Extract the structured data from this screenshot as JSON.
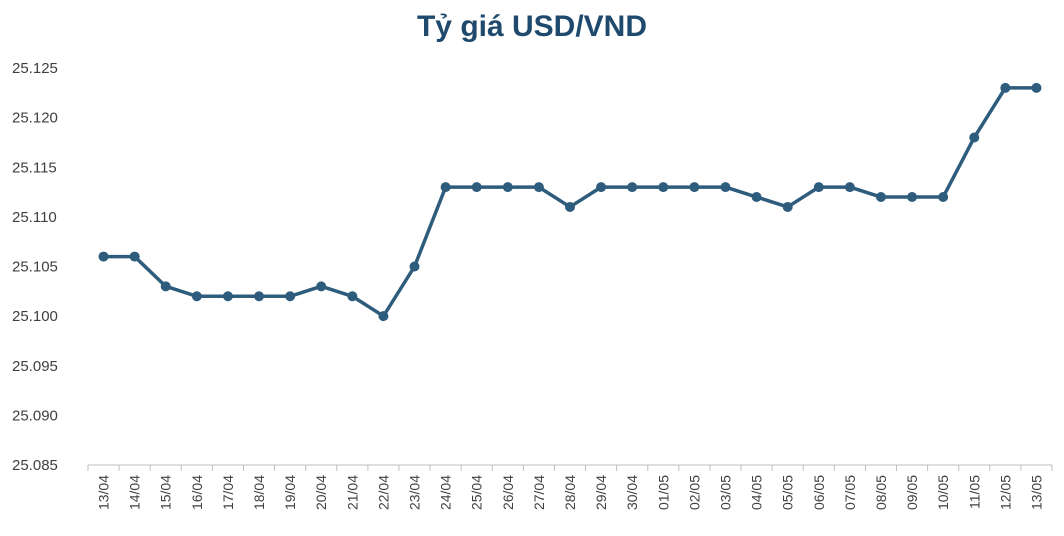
{
  "chart_data": {
    "type": "line",
    "title": "Tỷ giá USD/VND",
    "xlabel": "",
    "ylabel": "",
    "ylim": [
      25.085,
      25.125
    ],
    "yticks": [
      "25.085",
      "25.090",
      "25.095",
      "25.100",
      "25.105",
      "25.110",
      "25.115",
      "25.120",
      "25.125"
    ],
    "categories": [
      "13/04",
      "14/04",
      "15/04",
      "16/04",
      "17/04",
      "18/04",
      "19/04",
      "20/04",
      "21/04",
      "22/04",
      "23/04",
      "24/04",
      "25/04",
      "26/04",
      "27/04",
      "28/04",
      "29/04",
      "30/04",
      "01/05",
      "02/05",
      "03/05",
      "04/05",
      "05/05",
      "06/05",
      "07/05",
      "08/05",
      "09/05",
      "10/05",
      "11/05",
      "12/05",
      "13/05"
    ],
    "series": [
      {
        "values": [
          25.106,
          25.106,
          25.103,
          25.102,
          25.102,
          25.102,
          25.102,
          25.103,
          25.102,
          25.1,
          25.105,
          25.113,
          25.113,
          25.113,
          25.113,
          25.111,
          25.113,
          25.113,
          25.113,
          25.113,
          25.113,
          25.112,
          25.111,
          25.113,
          25.113,
          25.112,
          25.112,
          25.112,
          25.118,
          25.123,
          25.123
        ],
        "color": "#2e5c7d"
      }
    ],
    "grid": false,
    "legend": "none"
  }
}
